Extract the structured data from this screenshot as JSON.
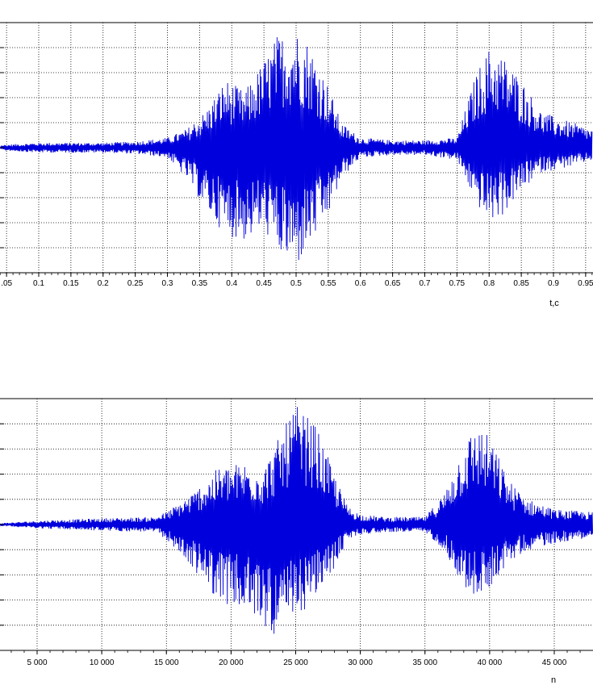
{
  "chart_data": [
    {
      "type": "line",
      "xlabel": "t,c",
      "xlim": [
        0.0,
        0.96
      ],
      "ylim": [
        -1.0,
        1.0
      ],
      "grid": true,
      "x_ticks": [
        0.05,
        0.1,
        0.15,
        0.2,
        0.25,
        0.3,
        0.35,
        0.4,
        0.45,
        0.5,
        0.55,
        0.6,
        0.65,
        0.7,
        0.75,
        0.8,
        0.85,
        0.9,
        0.95
      ],
      "x_tick_labels": [
        ".05",
        "0.1",
        "0.15",
        "0.2",
        "0.25",
        "0.3",
        "0.35",
        "0.4",
        "0.45",
        "0.5",
        "0.55",
        "0.6",
        "0.65",
        "0.7",
        "0.75",
        "0.8",
        "0.85",
        "0.9",
        "0.95"
      ],
      "y_gridlines": [
        -0.8,
        -0.6,
        -0.4,
        -0.2,
        0.0,
        0.2,
        0.4,
        0.6,
        0.8
      ],
      "series": [
        {
          "color": "#0000dd",
          "envelope": {
            "x": [
              0.0,
              0.1,
              0.2,
              0.25,
              0.3,
              0.33,
              0.36,
              0.39,
              0.42,
              0.45,
              0.47,
              0.5,
              0.52,
              0.55,
              0.57,
              0.6,
              0.65,
              0.7,
              0.75,
              0.78,
              0.8,
              0.82,
              0.85,
              0.88,
              0.9,
              0.93,
              0.96
            ],
            "upper": [
              0.01,
              0.04,
              0.04,
              0.05,
              0.08,
              0.15,
              0.3,
              0.55,
              0.45,
              0.7,
              0.9,
              0.95,
              0.85,
              0.5,
              0.2,
              0.08,
              0.06,
              0.06,
              0.08,
              0.6,
              0.8,
              0.75,
              0.55,
              0.3,
              0.25,
              0.2,
              0.15
            ],
            "lower": [
              -0.01,
              -0.04,
              -0.04,
              -0.05,
              -0.08,
              -0.25,
              -0.5,
              -0.7,
              -0.75,
              -0.65,
              -0.85,
              -0.97,
              -0.8,
              -0.55,
              -0.25,
              -0.08,
              -0.06,
              -0.06,
              -0.1,
              -0.45,
              -0.6,
              -0.55,
              -0.35,
              -0.2,
              -0.18,
              -0.15,
              -0.1
            ]
          }
        }
      ]
    },
    {
      "type": "line",
      "xlabel": "n",
      "xlim": [
        2000,
        48000
      ],
      "ylim": [
        -1.0,
        1.0
      ],
      "grid": true,
      "x_ticks": [
        5000,
        10000,
        15000,
        20000,
        25000,
        30000,
        35000,
        40000,
        45000
      ],
      "x_tick_labels": [
        "5 000",
        "10 000",
        "15 000",
        "20 000",
        "25 000",
        "30 000",
        "35 000",
        "40 000",
        "45 000"
      ],
      "y_gridlines": [
        -0.8,
        -0.6,
        -0.4,
        -0.2,
        0.0,
        0.2,
        0.4,
        0.6,
        0.8
      ],
      "series": [
        {
          "color": "#0000dd",
          "envelope": {
            "x": [
              2000,
              5000,
              10000,
              14000,
              15000,
              17000,
              19000,
              21000,
              22500,
              24000,
              25000,
              26500,
              28000,
              29000,
              30000,
              32000,
              35000,
              36500,
              38000,
              39000,
              40000,
              41500,
              43000,
              45000,
              48000
            ],
            "upper": [
              0.01,
              0.03,
              0.05,
              0.06,
              0.1,
              0.25,
              0.45,
              0.5,
              0.45,
              0.75,
              0.95,
              0.8,
              0.4,
              0.15,
              0.08,
              0.06,
              0.06,
              0.25,
              0.65,
              0.8,
              0.7,
              0.35,
              0.2,
              0.12,
              0.1
            ],
            "lower": [
              -0.01,
              -0.03,
              -0.05,
              -0.06,
              -0.12,
              -0.35,
              -0.6,
              -0.7,
              -0.8,
              -0.95,
              -0.75,
              -0.6,
              -0.35,
              -0.12,
              -0.08,
              -0.06,
              -0.06,
              -0.2,
              -0.5,
              -0.6,
              -0.5,
              -0.3,
              -0.2,
              -0.15,
              -0.1
            ]
          }
        }
      ]
    }
  ]
}
